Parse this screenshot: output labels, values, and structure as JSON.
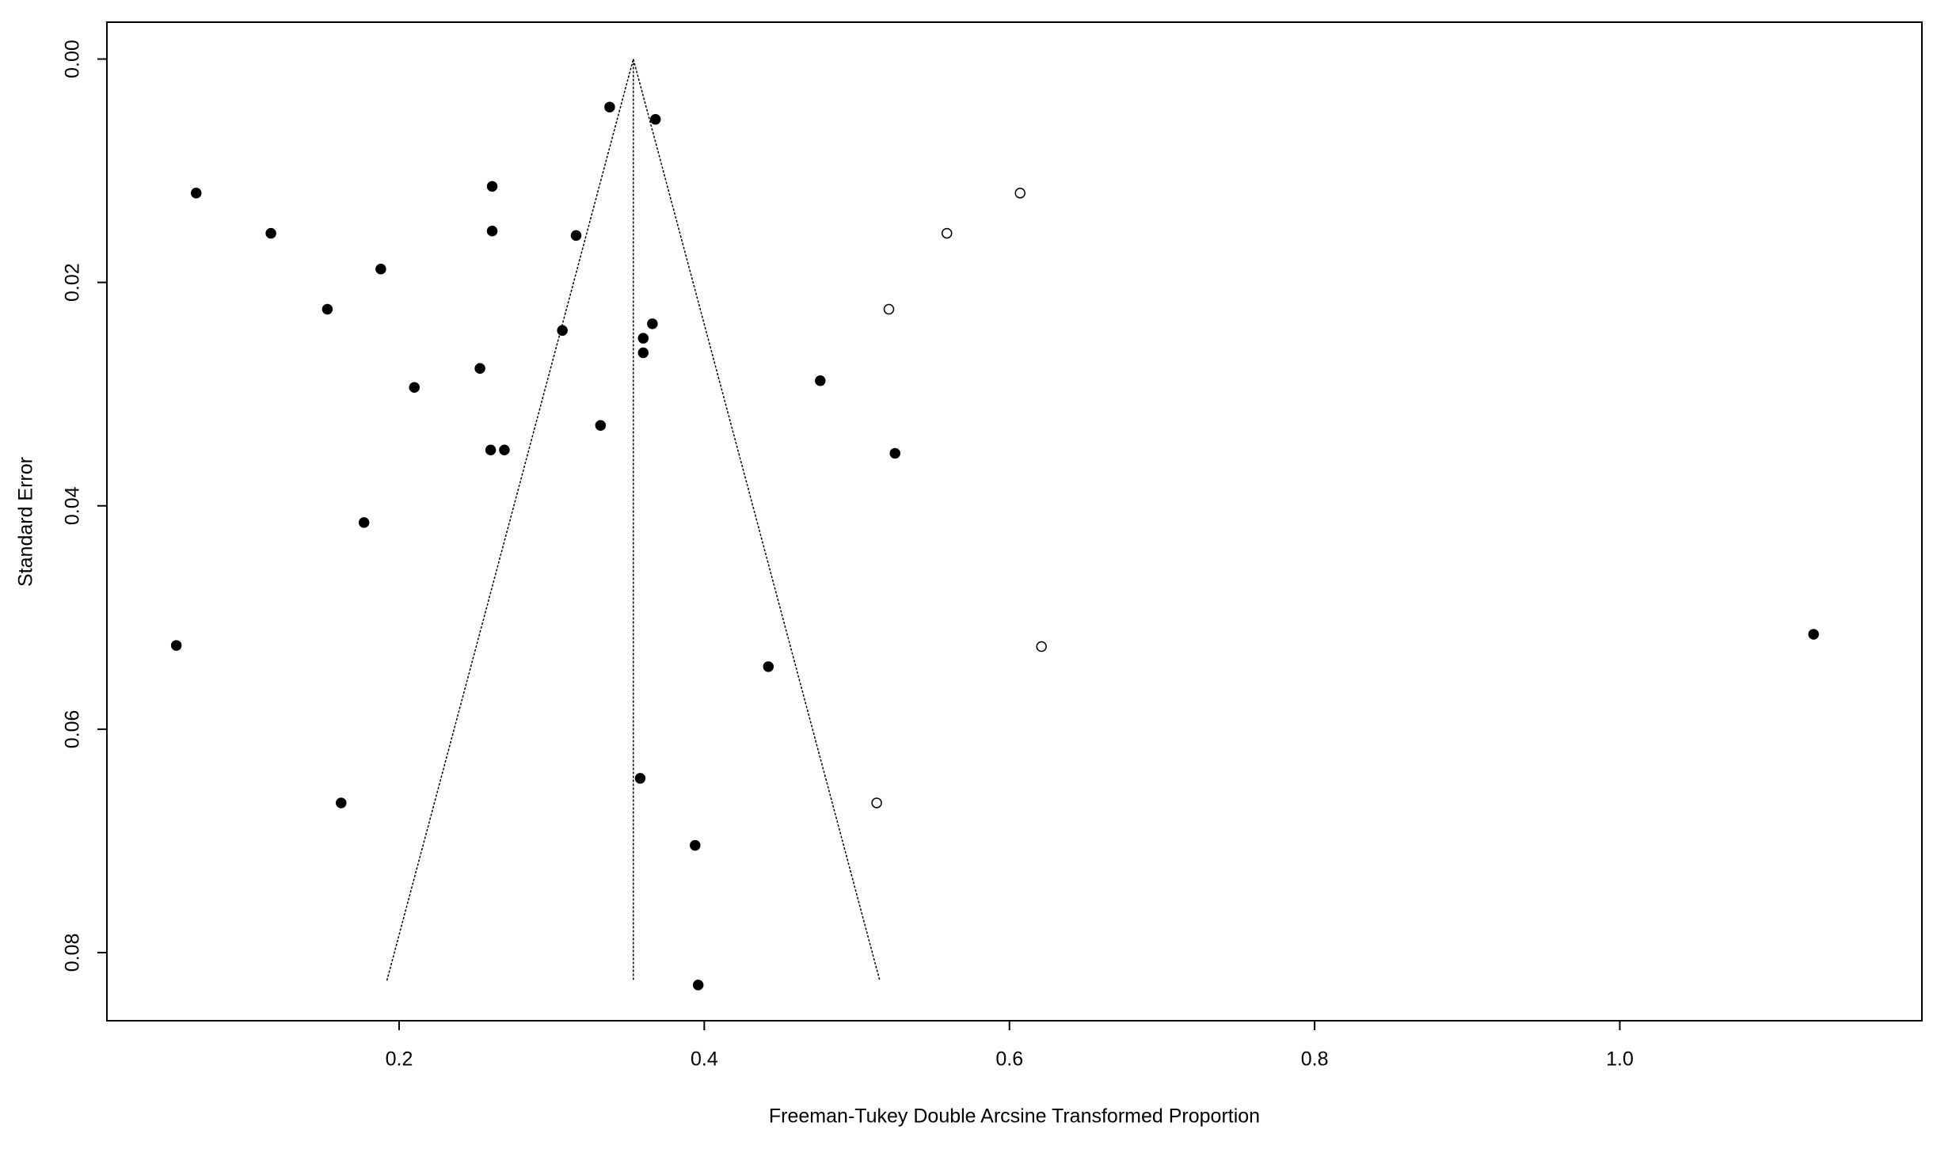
{
  "chart_data": {
    "type": "scatter",
    "x_label": "Freeman-Tukey Double Arcsine Transformed Proportion",
    "y_label": "Standard Error",
    "xlim": [
      0.0085,
      1.198
    ],
    "ylim": [
      -0.0033,
      0.0861
    ],
    "y_inverted": true,
    "xticks": [
      0.2,
      0.4,
      0.6,
      0.8,
      {
        "value": 1,
        "label": "1.0"
      }
    ],
    "yticks": [
      {
        "value": 0,
        "label": "0.00"
      },
      {
        "value": 0.02,
        "label": "0.02"
      },
      {
        "value": 0.04,
        "label": "0.04"
      },
      {
        "value": 0.06,
        "label": "0.06"
      },
      {
        "value": 0.08,
        "label": "0.08"
      }
    ],
    "funnel": {
      "color": "#000000",
      "x": [
        0.192,
        0.3535,
        0.515
      ],
      "y": [
        0.0825,
        0,
        0.0825
      ]
    },
    "center_line": {
      "color": "#000000",
      "x": [
        0.3535,
        0.3535
      ],
      "y": [
        0,
        0.0825
      ]
    },
    "series": [
      {
        "color": "#000000",
        "filled": true,
        "x": [
          0.338,
          0.368,
          0.067,
          0.116,
          0.261,
          0.261,
          0.316,
          0.188,
          0.153,
          0.307,
          0.366,
          0.36,
          0.36,
          0.253,
          0.21,
          0.476,
          0.332,
          0.26,
          0.269,
          0.525,
          0.177,
          0.054,
          1.127,
          0.442,
          0.358,
          0.162,
          0.394,
          0.396
        ],
        "values": [
          0.0043,
          0.0054,
          0.012,
          0.0156,
          0.0114,
          0.0154,
          0.0158,
          0.0188,
          0.0224,
          0.0243,
          0.0237,
          0.025,
          0.0263,
          0.0277,
          0.0294,
          0.0288,
          0.0328,
          0.035,
          0.035,
          0.0353,
          0.0415,
          0.0525,
          0.0515,
          0.0544,
          0.0644,
          0.0666,
          0.0704,
          0.0829
        ]
      },
      {
        "color": "#000000",
        "filled": false,
        "x": [
          0.607,
          0.559,
          0.521,
          0.621,
          0.513
        ],
        "values": [
          0.012,
          0.0156,
          0.0224,
          0.0526,
          0.0666
        ]
      }
    ]
  }
}
